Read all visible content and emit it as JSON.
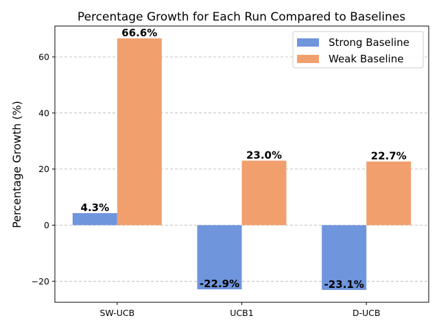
{
  "chart_data": {
    "type": "bar",
    "title": "Percentage Growth for Each Run Compared to Baselines",
    "xlabel": "",
    "ylabel": "Percentage Growth (%)",
    "categories": [
      "SW-UCB",
      "UCB1",
      "D-UCB"
    ],
    "series": [
      {
        "name": "Strong Baseline",
        "color": "#6f95dc",
        "values": [
          4.3,
          -22.9,
          -23.1
        ],
        "labels": [
          "4.3%",
          "-22.9%",
          "-23.1%"
        ]
      },
      {
        "name": "Weak Baseline",
        "color": "#f29f6e",
        "values": [
          66.6,
          23.0,
          22.7
        ],
        "labels": [
          "66.6%",
          "23.0%",
          "22.7%"
        ]
      }
    ],
    "ylim": [
      -27.5,
      71
    ],
    "yticks": [
      -20,
      0,
      20,
      40,
      60
    ],
    "ytick_labels": [
      "−20",
      "0",
      "20",
      "40",
      "60"
    ],
    "grid": true,
    "legend_position": "top-right"
  }
}
